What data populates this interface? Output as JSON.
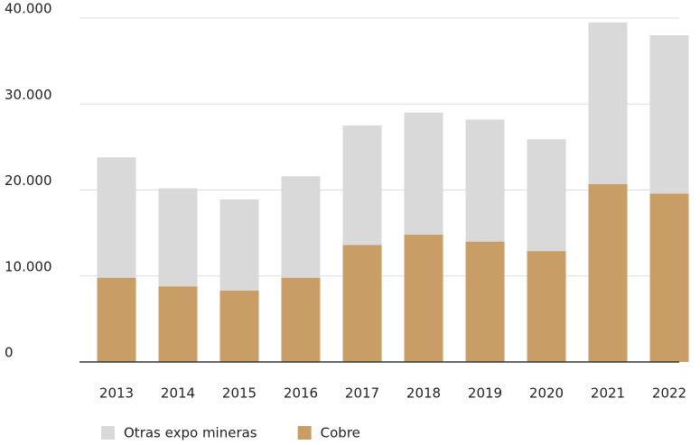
{
  "chart_data": {
    "type": "stacked_bar",
    "categories": [
      "2013",
      "2014",
      "2015",
      "2016",
      "2017",
      "2018",
      "2019",
      "2020",
      "2021",
      "2022"
    ],
    "series": [
      {
        "name": "Cobre",
        "color": "#c89e66",
        "values": [
          9800,
          8800,
          8300,
          9800,
          13600,
          14800,
          14000,
          12900,
          20700,
          19600
        ]
      },
      {
        "name": "Otras expo mineras",
        "color": "#d9d9d9",
        "values": [
          14000,
          11400,
          10600,
          11800,
          13900,
          14200,
          14200,
          13000,
          18800,
          18400
        ]
      }
    ],
    "legend_order": [
      "Otras expo mineras",
      "Cobre"
    ],
    "ylim": [
      0,
      40000
    ],
    "yticks": [
      0,
      {
        "value": 10000,
        "label": "10.000"
      },
      {
        "value": 20000,
        "label": "20.000"
      },
      {
        "value": 30000,
        "label": "30.000"
      },
      {
        "value": 40000,
        "label": "40.000"
      }
    ],
    "grid": true,
    "legend": "bottom-left"
  }
}
